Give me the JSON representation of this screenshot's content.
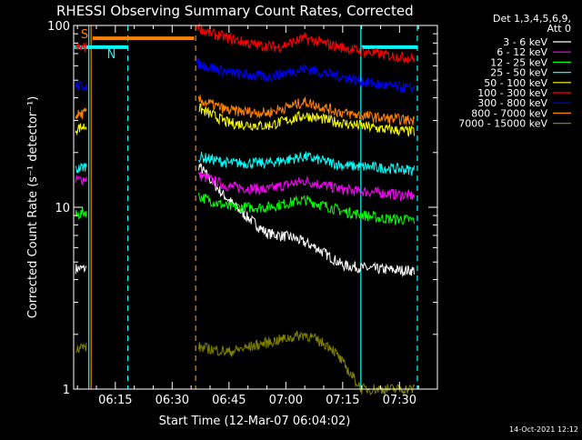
{
  "title": "RHESSI Observing Summary Count Rates, Corrected",
  "ylabel": "Corrected Count Rate (s⁻¹ detector⁻¹)",
  "xlabel": "Start Time (12-Mar-07 06:04:02)",
  "timestamp": "14-Oct-2021 12:12",
  "legend_header": [
    "Det 1,3,4,5,6,9,",
    "Att 0"
  ],
  "bar_labels": {
    "S": "S",
    "N": "N"
  },
  "colors": {
    "axis": "#ffffff",
    "saa": "#ff8000",
    "night": "#00ffff",
    "s_marker": "#ff8000"
  },
  "chart_data": {
    "type": "line",
    "title": "RHESSI Observing Summary Count Rates, Corrected",
    "xlabel": "Start Time (12-Mar-07 06:04:02)",
    "ylabel": "Corrected Count Rate (s^-1 detector^-1)",
    "y_scale": "log",
    "ylim": [
      1,
      100
    ],
    "xlim_minutes_after_06_00": [
      4,
      51
    ],
    "xticks": [
      {
        "label": "06:15",
        "t": 15
      },
      {
        "label": "06:30",
        "t": 30
      },
      {
        "label": "06:45",
        "t": 45
      },
      {
        "label": "07:00",
        "t": 60
      },
      {
        "label": "07:15",
        "t": 75
      },
      {
        "label": "07:30",
        "t": 90
      }
    ],
    "yticks": [
      {
        "label": "1",
        "v": 1
      },
      {
        "label": "10",
        "v": 10
      },
      {
        "label": "100",
        "v": 100
      }
    ],
    "vlines": [
      {
        "t": 8.6,
        "style": "solid",
        "color": "#ff8000"
      },
      {
        "t": 8.0,
        "style": "solid",
        "color": "#00ffff"
      },
      {
        "t": 18.3,
        "style": "dashed",
        "color": "#00ffff"
      },
      {
        "t": 36.2,
        "style": "dashed",
        "color": "#ff8000"
      },
      {
        "t": 79.8,
        "style": "solid",
        "color": "#00ffff"
      },
      {
        "t": 94.7,
        "style": "dashed",
        "color": "#00ffff"
      }
    ],
    "status_bars": [
      {
        "label": "S",
        "color": "#ff8000",
        "t_start": 9.0,
        "t_end": 35.8,
        "level": 85
      },
      {
        "label": "N",
        "color": "#00ffff",
        "t_start": 4.2,
        "t_end": 18.3,
        "level": 76
      },
      {
        "label": "",
        "color": "#00ffff",
        "t_start": 80.0,
        "t_end": 94.7,
        "level": 76
      }
    ],
    "series": [
      {
        "name": "3 - 6 keV",
        "color": "#ffffff",
        "segments": [
          {
            "t": [
              4.5,
              7.5
            ],
            "v": [
              4.6,
              4.6
            ]
          },
          {
            "t": [
              37,
              43,
              48,
              55,
              62,
              68,
              75,
              82,
              90,
              94
            ],
            "v": [
              17,
              12,
              9.5,
              7.2,
              6.8,
              6.0,
              4.8,
              4.6,
              4.5,
              4.5
            ]
          }
        ]
      },
      {
        "name": "6 - 12 keV",
        "color": "#ff00ff",
        "segments": [
          {
            "t": [
              4.5,
              7.5
            ],
            "v": [
              14,
              14.5
            ]
          },
          {
            "t": [
              37,
              45,
              55,
              65,
              75,
              85,
              94
            ],
            "v": [
              15,
              13,
              12.5,
              14,
              12.5,
              12,
              11.5
            ]
          }
        ]
      },
      {
        "name": "12 - 25 keV",
        "color": "#00ff00",
        "segments": [
          {
            "t": [
              4.5,
              7.5
            ],
            "v": [
              9.0,
              9.5
            ]
          },
          {
            "t": [
              37,
              45,
              55,
              65,
              75,
              85,
              94
            ],
            "v": [
              11.5,
              10,
              10,
              11,
              9.5,
              8.7,
              8.5
            ]
          }
        ]
      },
      {
        "name": "25 - 50 keV",
        "color": "#00ffff",
        "segments": [
          {
            "t": [
              4.5,
              7.5
            ],
            "v": [
              16,
              17
            ]
          },
          {
            "t": [
              37,
              45,
              55,
              65,
              75,
              85,
              94
            ],
            "v": [
              19,
              17.5,
              17.5,
              19,
              17,
              16.5,
              16
            ]
          }
        ]
      },
      {
        "name": "50 - 100 keV",
        "color": "#ffff00",
        "segments": [
          {
            "t": [
              4.5,
              7.5
            ],
            "v": [
              27,
              28
            ]
          },
          {
            "t": [
              37,
              45,
              55,
              65,
              75,
              85,
              94
            ],
            "v": [
              35,
              29,
              28,
              32,
              29,
              27,
              26
            ]
          }
        ]
      },
      {
        "name": "100 - 300 keV",
        "color": "#ff0000",
        "segments": [
          {
            "t": [
              4.5,
              7.5
            ],
            "v": [
              75,
              76
            ]
          },
          {
            "t": [
              36.5,
              39,
              45,
              52,
              58,
              65,
              72,
              80,
              88,
              94
            ],
            "v": [
              100,
              92,
              85,
              78,
              76,
              85,
              78,
              72,
              68,
              66
            ]
          }
        ]
      },
      {
        "name": "300 - 800 keV",
        "color": "#0000ff",
        "segments": [
          {
            "t": [
              4.5,
              7.5
            ],
            "v": [
              46,
              47
            ]
          },
          {
            "t": [
              36.5,
              45,
              55,
              65,
              75,
              85,
              94
            ],
            "v": [
              62,
              55,
              52,
              58,
              52,
              47,
              45
            ]
          }
        ]
      },
      {
        "name": "800 - 7000 keV",
        "color": "#ff8000",
        "segments": [
          {
            "t": [
              4.5,
              7.5
            ],
            "v": [
              32,
              33
            ]
          },
          {
            "t": [
              37,
              45,
              55,
              65,
              75,
              85,
              94
            ],
            "v": [
              39,
              34,
              33,
              38,
              33,
              31,
              30
            ]
          }
        ]
      },
      {
        "name": "7000 - 15000 keV",
        "color": "#808000",
        "segments": [
          {
            "t": [
              4.5,
              7.5
            ],
            "v": [
              1.7,
              1.7
            ]
          },
          {
            "t": [
              37,
              45,
              55,
              65,
              72,
              80,
              90,
              94
            ],
            "v": [
              1.7,
              1.6,
              1.8,
              2.0,
              1.7,
              1.0,
              1.0,
              1.0
            ]
          }
        ]
      }
    ]
  }
}
